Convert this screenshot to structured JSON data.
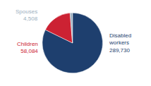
{
  "chart_data": {
    "type": "pie",
    "categories": [
      "Disabled\nworkers",
      "Children",
      "Spouses"
    ],
    "values": [
      289730,
      58084,
      4508
    ],
    "value_labels": [
      "289,730",
      "58,084",
      "4,508"
    ],
    "colors": [
      "#1e3f6e",
      "#cc2233",
      "#9bafc0"
    ],
    "data_labels": true
  }
}
